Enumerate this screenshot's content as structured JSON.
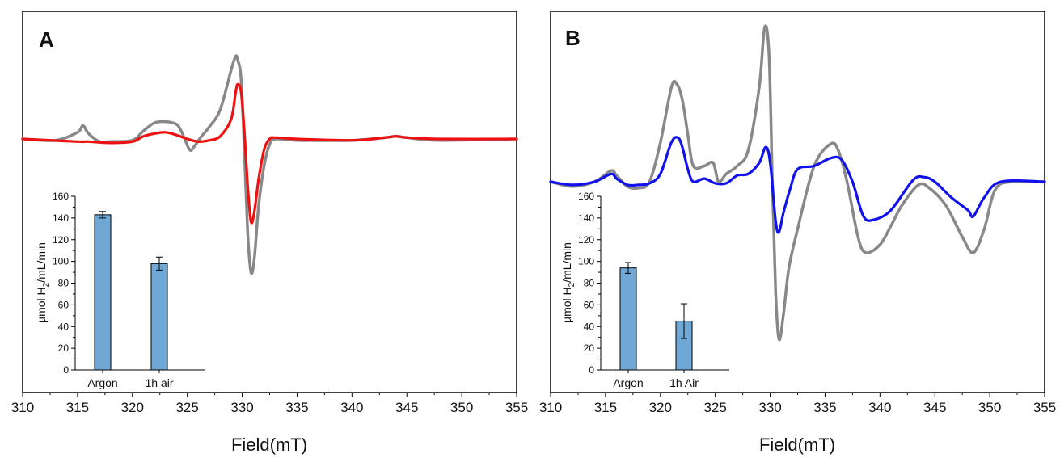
{
  "figure": {
    "panels": [
      {
        "letter": "A",
        "xlabel": "Field(mT)",
        "xlim": [
          310,
          355
        ],
        "xticks": [
          "310",
          "315",
          "320",
          "325",
          "330",
          "335",
          "340",
          "345",
          "350",
          "355"
        ]
      },
      {
        "letter": "B",
        "xlabel": "Field(mT)",
        "xlim": [
          310,
          355
        ],
        "xticks": [
          "310",
          "315",
          "320",
          "325",
          "330",
          "335",
          "340",
          "345",
          "350",
          "355"
        ]
      }
    ],
    "insets": [
      {
        "ylabel_main": "µmol H",
        "ylabel_sub": "2",
        "ylabel_tail": "/mL/min",
        "ylim": [
          0,
          160
        ],
        "yticks": [
          "0",
          "20",
          "40",
          "60",
          "80",
          "100",
          "120",
          "140",
          "160"
        ],
        "categories": [
          "Argon",
          "1h air"
        ]
      },
      {
        "ylabel_main": "µmol H",
        "ylabel_sub": "2",
        "ylabel_tail": "/mL/min",
        "ylim": [
          0,
          160
        ],
        "yticks": [
          "0",
          "20",
          "40",
          "60",
          "80",
          "100",
          "120",
          "140",
          "160"
        ],
        "categories": [
          "Argon",
          "1h Air"
        ]
      }
    ]
  },
  "chart_data": [
    {
      "type": "line",
      "panel": "A",
      "xlabel": "Field(mT)",
      "ylabel": "",
      "xlim": [
        310,
        355
      ],
      "ylim": [
        -1.0,
        1.0
      ],
      "y_ticks_shown": false,
      "grid": false,
      "series": [
        {
          "color": "#888888",
          "x": [
            310,
            313,
            315,
            315.5,
            316,
            317,
            318,
            320,
            321,
            322,
            323,
            324,
            324.5,
            325.2,
            325.6,
            326.2,
            327,
            328,
            329,
            329.4,
            329.6,
            329.9,
            330.2,
            330.5,
            330.8,
            331.1,
            331.5,
            332,
            332.5,
            333,
            335,
            340,
            343,
            344,
            345,
            348,
            355
          ],
          "y": [
            0,
            -0.01,
            0.05,
            0.1,
            0.04,
            -0.02,
            -0.02,
            -0.01,
            0.06,
            0.12,
            0.13,
            0.11,
            0.05,
            -0.08,
            -0.06,
            0.01,
            0.09,
            0.22,
            0.52,
            0.62,
            0.59,
            0.45,
            -0.1,
            -0.7,
            -1.0,
            -0.9,
            -0.5,
            -0.2,
            -0.04,
            0.0,
            -0.01,
            -0.01,
            0.01,
            0.02,
            0.01,
            -0.01,
            0
          ]
        },
        {
          "color": "#ee1111",
          "x": [
            310,
            315,
            316,
            318,
            320,
            321,
            322,
            323,
            324,
            325,
            326,
            327,
            328,
            329,
            329.4,
            329.6,
            329.9,
            330.2,
            330.5,
            330.8,
            331.1,
            331.5,
            332,
            332.5,
            333,
            335,
            340,
            343,
            344,
            345,
            348,
            355
          ],
          "y": [
            0,
            -0.02,
            -0.02,
            -0.03,
            -0.02,
            0.02,
            0.04,
            0.05,
            0.03,
            0.0,
            -0.02,
            -0.01,
            0.02,
            0.15,
            0.35,
            0.41,
            0.35,
            0.05,
            -0.35,
            -0.62,
            -0.55,
            -0.3,
            -0.08,
            0.0,
            0.01,
            0.0,
            -0.01,
            0.01,
            0.02,
            0.01,
            0.0,
            0
          ]
        }
      ],
      "inset": {
        "type": "bar",
        "categories": [
          "Argon",
          "1h air"
        ],
        "values": [
          143,
          98
        ],
        "errors": [
          3,
          6
        ],
        "ylim": [
          0,
          160
        ],
        "color": "#6fa8d6"
      }
    },
    {
      "type": "line",
      "panel": "B",
      "xlabel": "Field(mT)",
      "ylabel": "",
      "xlim": [
        310,
        355
      ],
      "ylim": [
        -1.0,
        1.0
      ],
      "y_ticks_shown": false,
      "grid": false,
      "series": [
        {
          "color": "#888888",
          "x": [
            310,
            312,
            314,
            315.5,
            316,
            317,
            318,
            319,
            320,
            321,
            321.5,
            322,
            322.5,
            323,
            324,
            324.8,
            325.3,
            326,
            327,
            328,
            329,
            329.5,
            329.9,
            330.2,
            330.5,
            330.8,
            331.2,
            331.7,
            332.5,
            334,
            335.5,
            336.2,
            337,
            338,
            338.7,
            340,
            341,
            342,
            343.5,
            344.5,
            346,
            347.5,
            348.5,
            349.5,
            350.5,
            352,
            355
          ],
          "y": [
            0,
            -0.03,
            0.0,
            0.07,
            0.04,
            -0.03,
            -0.04,
            0.0,
            0.25,
            0.6,
            0.62,
            0.52,
            0.3,
            0.1,
            0.1,
            0.12,
            0.0,
            0.05,
            0.1,
            0.2,
            0.6,
            0.98,
            0.8,
            0.0,
            -0.7,
            -1.0,
            -0.85,
            -0.55,
            -0.3,
            0.1,
            0.24,
            0.2,
            0.0,
            -0.35,
            -0.45,
            -0.4,
            -0.28,
            -0.15,
            -0.02,
            -0.04,
            -0.15,
            -0.35,
            -0.45,
            -0.3,
            -0.05,
            0.0,
            0
          ]
        },
        {
          "color": "#1111ee",
          "x": [
            310,
            312,
            314,
            315.5,
            316,
            317,
            318,
            319,
            320,
            321,
            321.6,
            322,
            322.5,
            323,
            324,
            325,
            326,
            327,
            328,
            329,
            329.6,
            330,
            330.5,
            330.8,
            331.2,
            331.8,
            332.5,
            334,
            335.5,
            336.5,
            337.5,
            338.5,
            339.5,
            341,
            343,
            344,
            345,
            346.5,
            348,
            348.5,
            349.5,
            351,
            355
          ],
          "y": [
            0,
            -0.02,
            0.0,
            0.05,
            0.02,
            -0.02,
            -0.02,
            -0.01,
            0.05,
            0.25,
            0.28,
            0.22,
            0.08,
            0.0,
            0.02,
            -0.01,
            -0.01,
            0.04,
            0.05,
            0.12,
            0.22,
            0.12,
            -0.25,
            -0.32,
            -0.2,
            -0.05,
            0.08,
            0.1,
            0.15,
            0.14,
            0.0,
            -0.22,
            -0.24,
            -0.18,
            0.01,
            0.03,
            0.0,
            -0.1,
            -0.18,
            -0.22,
            -0.1,
            0.0,
            0
          ]
        }
      ],
      "inset": {
        "type": "bar",
        "categories": [
          "Argon",
          "1h Air"
        ],
        "values": [
          94,
          45
        ],
        "errors": [
          5,
          16
        ],
        "ylim": [
          0,
          160
        ],
        "color": "#6fa8d6"
      }
    }
  ]
}
